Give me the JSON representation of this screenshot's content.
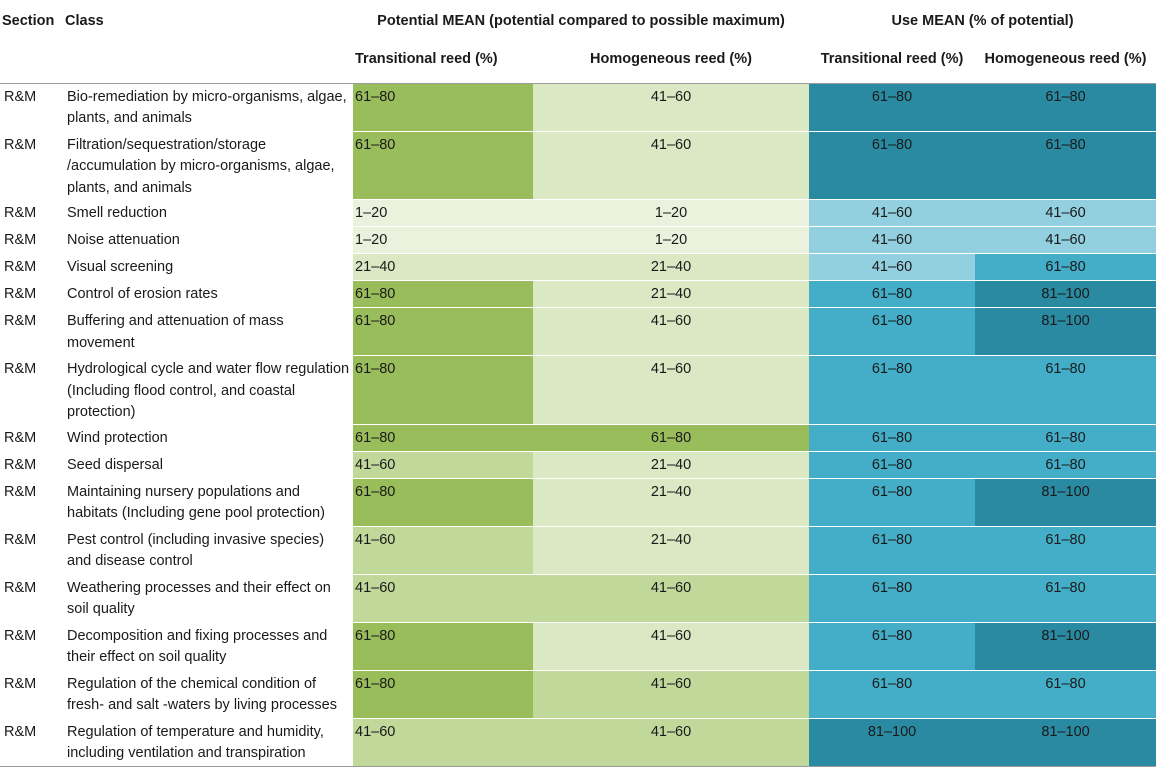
{
  "header": {
    "section": "Section",
    "class": "Class",
    "potential_group": "Potential MEAN (potential compared to possible maximum)",
    "use_group": "Use MEAN (% of potential)",
    "potential_transitional": "Transitional reed (%)",
    "potential_homogeneous": "Homogeneous reed (%)",
    "use_transitional": "Transitional reed (%)",
    "use_homogeneous": "Homogeneous reed (%)"
  },
  "rows": [
    {
      "section": "R&M",
      "class": "Bio-remediation by micro-organisms, algae, plants, and animals",
      "pot_trans": "61–80",
      "pot_homo": "41–60",
      "use_trans": "61–80",
      "use_homo": "61–80"
    },
    {
      "section": "R&M",
      "class": "Filtration/sequestration/storage /accumulation by micro-organisms, algae, plants, and animals",
      "pot_trans": "61–80",
      "pot_homo": "41–60",
      "use_trans": "61–80",
      "use_homo": "61–80"
    },
    {
      "section": "R&M",
      "class": "Smell reduction",
      "pot_trans": "1–20",
      "pot_homo": "1–20",
      "use_trans": "41–60",
      "use_homo": "41–60"
    },
    {
      "section": "R&M",
      "class": "Noise attenuation",
      "pot_trans": "1–20",
      "pot_homo": "1–20",
      "use_trans": "41–60",
      "use_homo": "41–60"
    },
    {
      "section": "R&M",
      "class": "Visual screening",
      "pot_trans": "21–40",
      "pot_homo": "21–40",
      "use_trans": "41–60",
      "use_homo": "61–80"
    },
    {
      "section": "R&M",
      "class": "Control of erosion rates",
      "pot_trans": "61–80",
      "pot_homo": "21–40",
      "use_trans": "61–80",
      "use_homo": "81–100"
    },
    {
      "section": "R&M",
      "class": "Buffering and attenuation of mass movement",
      "pot_trans": "61–80",
      "pot_homo": "41–60",
      "use_trans": "61–80",
      "use_homo": "81–100"
    },
    {
      "section": "R&M",
      "class": "Hydrological cycle and water flow regulation (Including flood control, and coastal protection)",
      "pot_trans": "61–80",
      "pot_homo": "41–60",
      "use_trans": "61–80",
      "use_homo": "61–80"
    },
    {
      "section": "R&M",
      "class": "Wind protection",
      "pot_trans": "61–80",
      "pot_homo": "61–80",
      "use_trans": "61–80",
      "use_homo": "61–80"
    },
    {
      "section": "R&M",
      "class": "Seed dispersal",
      "pot_trans": "41–60",
      "pot_homo": "21–40",
      "use_trans": "61–80",
      "use_homo": "61–80"
    },
    {
      "section": "R&M",
      "class": "Maintaining nursery populations and habitats (Including gene pool protection)",
      "pot_trans": "61–80",
      "pot_homo": "21–40",
      "use_trans": "61–80",
      "use_homo": "81–100"
    },
    {
      "section": "R&M",
      "class": "Pest control (including invasive species) and disease control",
      "pot_trans": "41–60",
      "pot_homo": "21–40",
      "use_trans": "61–80",
      "use_homo": "61–80"
    },
    {
      "section": "R&M",
      "class": "Weathering processes and their effect on soil quality",
      "pot_trans": "41–60",
      "pot_homo": "41–60",
      "use_trans": "61–80",
      "use_homo": "61–80"
    },
    {
      "section": "R&M",
      "class": "Decomposition and fixing processes and their effect on soil quality",
      "pot_trans": "61–80",
      "pot_homo": "41–60",
      "use_trans": "61–80",
      "use_homo": "81–100"
    },
    {
      "section": "R&M",
      "class": "Regulation of the chemical condition of fresh- and salt -waters by living processes",
      "pot_trans": "61–80",
      "pot_homo": "41–60",
      "use_trans": "61–80",
      "use_homo": "61–80"
    },
    {
      "section": "R&M",
      "class": "Regulation of temperature and humidity, including ventilation and transpiration",
      "pot_trans": "41–60",
      "pot_homo": "41–60",
      "use_trans": "81–100",
      "use_homo": "81–100"
    }
  ]
}
